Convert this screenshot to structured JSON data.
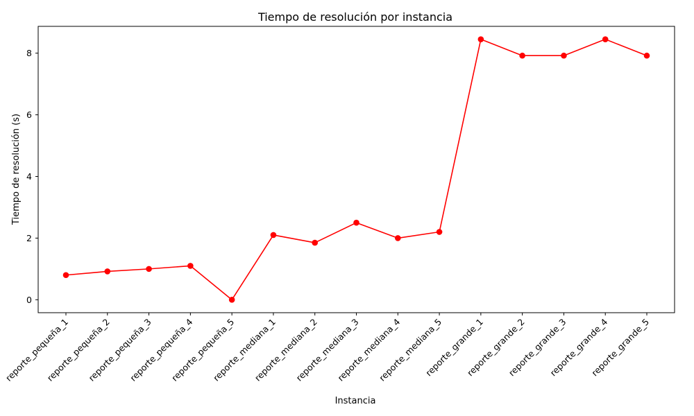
{
  "chart_data": {
    "type": "line",
    "title": "Tiempo de resolución por instancia",
    "xlabel": "Instancia",
    "ylabel": "Tiempo de resolución (s)",
    "categories": [
      "reporte_pequeña_1",
      "reporte_pequeña_2",
      "reporte_pequeña_3",
      "reporte_pequeña_4",
      "reporte_pequeña_5",
      "reporte_mediana_1",
      "reporte_mediana_2",
      "reporte_mediana_3",
      "reporte_mediana_4",
      "reporte_mediana_5",
      "reporte_grande_1",
      "reporte_grande_2",
      "reporte_grande_3",
      "reporte_grande_4",
      "reporte_grande_5"
    ],
    "series": [
      {
        "values": [
          0.8,
          0.92,
          1.0,
          1.1,
          0.0,
          2.1,
          1.85,
          2.5,
          2.0,
          2.2,
          8.45,
          7.92,
          7.92,
          8.45,
          7.92
        ],
        "color": "#ff0000",
        "marker": "circle"
      }
    ],
    "yticks": [
      0,
      2,
      4,
      6,
      8
    ],
    "ylim": [
      -0.42,
      8.87
    ],
    "grid": false,
    "legend": "none"
  }
}
